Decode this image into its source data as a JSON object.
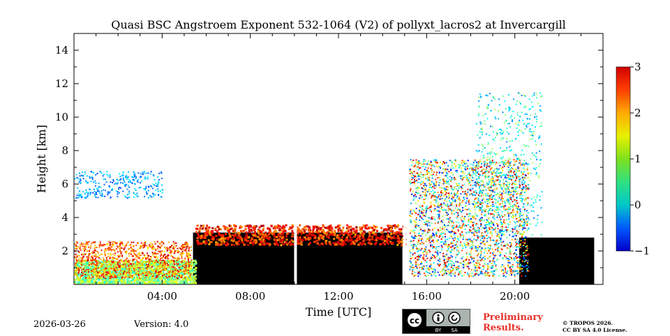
{
  "chart_data": {
    "type": "heatmap",
    "title": "Quasi BSC Angstroem Exponent 532-1064 (V2) of pollyxt_lacros2 at Invercargill",
    "xlabel": "Time [UTC]",
    "ylabel": "Height [km]",
    "xlim": [
      0,
      24
    ],
    "ylim": [
      0,
      15
    ],
    "x_ticks": [
      4,
      8,
      12,
      16,
      20
    ],
    "x_tick_labels": [
      "04:00",
      "08:00",
      "12:00",
      "16:00",
      "20:00"
    ],
    "y_ticks": [
      2,
      4,
      6,
      8,
      10,
      12,
      14
    ],
    "y_tick_labels": [
      "2",
      "4",
      "6",
      "8",
      "10",
      "12",
      "14"
    ],
    "colorbar": {
      "min": -1,
      "max": 3,
      "ticks": [
        -1,
        0,
        1,
        2,
        3
      ],
      "tick_labels": [
        "−1",
        "0",
        "1",
        "2",
        "3"
      ],
      "colormap": "jet"
    },
    "field_regions": [
      {
        "name": "night boundary layer",
        "t_start": 0,
        "t_end": 5.5,
        "h_bottom": 0,
        "h_top": 1.5,
        "value_min": 0.6,
        "value_max": 1.5
      },
      {
        "name": "night scattered aerosol",
        "t_start": 0,
        "t_end": 5.3,
        "h_bottom": 0.4,
        "h_top": 2.6,
        "value_min": 1.5,
        "value_max": 2.8
      },
      {
        "name": "early thin layer",
        "t_start": 0,
        "t_end": 4,
        "h_bottom": 5.2,
        "h_top": 6.8,
        "value_min": -0.3,
        "value_max": 0.5
      },
      {
        "name": "daytime cloud layer top",
        "t_start": 5.5,
        "t_end": 15,
        "h_bottom": 2.4,
        "h_top": 3.6,
        "value_min": 1.8,
        "value_max": 2.9
      },
      {
        "name": "afternoon noisy aerosol",
        "t_start": 15.2,
        "t_end": 20.6,
        "h_bottom": 0.5,
        "h_top": 7.5,
        "value_min": -0.5,
        "value_max": 2.8
      },
      {
        "name": "lifted layer",
        "t_start": 18.2,
        "t_end": 21.2,
        "h_bottom": 3,
        "h_top": 11.5,
        "value_min": 0,
        "value_max": 1.2
      }
    ],
    "no_signal_regions": [
      {
        "t_start": 5.4,
        "t_end": 14.9,
        "h_bottom": 0,
        "h_top": 3.1
      },
      {
        "t_start": 20.2,
        "t_end": 23.6,
        "h_bottom": 0,
        "h_top": 2.8
      }
    ]
  },
  "footer": {
    "date": "2026-03-26",
    "version": "Version: 4.0",
    "preliminary": [
      "Preliminary",
      "Results."
    ],
    "copyright": [
      "© TROPOS 2026.",
      "CC BY SA 4.0 License."
    ],
    "license_badge": {
      "left": "cc",
      "by": "BY",
      "sa": "SA"
    }
  }
}
